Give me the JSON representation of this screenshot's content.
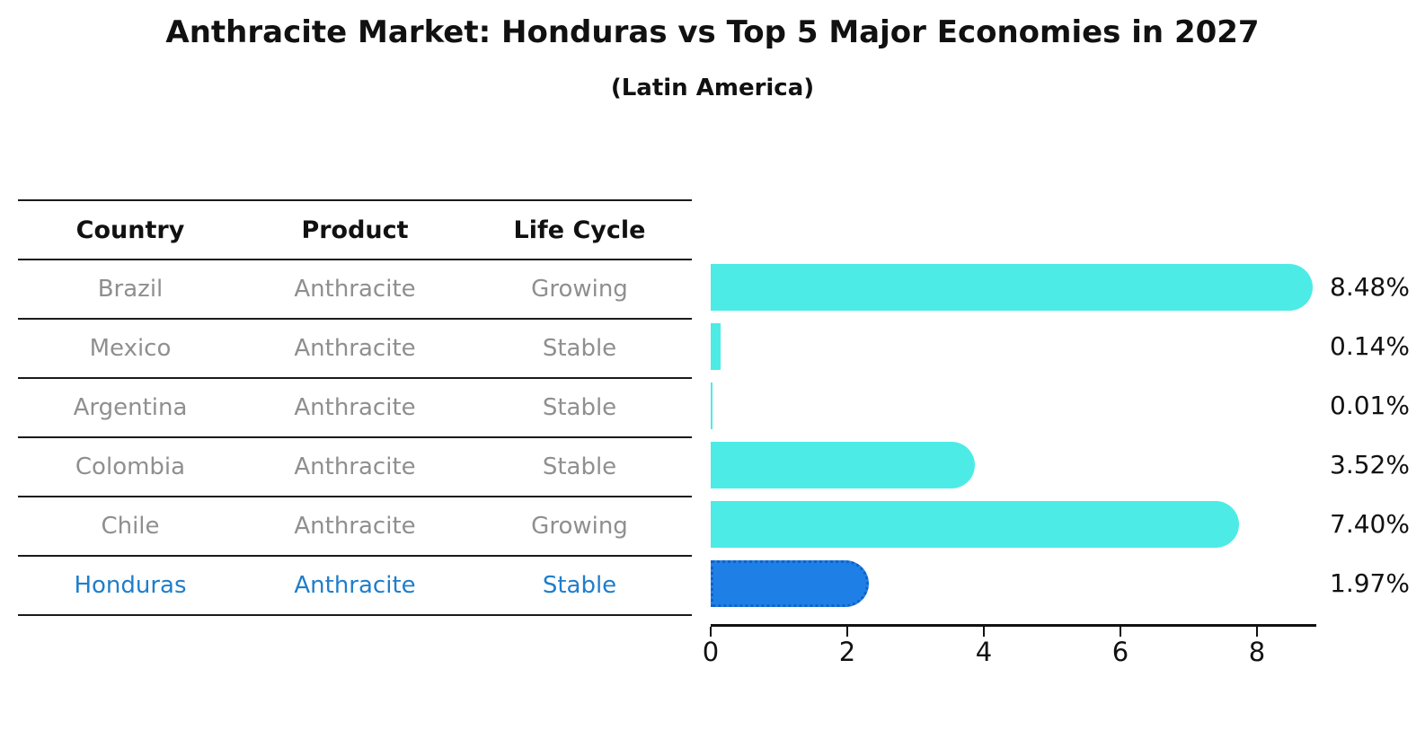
{
  "header": {
    "title": "Anthracite Market: Honduras vs Top 5 Major Economies in 2027",
    "subtitle": "(Latin America)"
  },
  "table": {
    "headers": [
      "Country",
      "Product",
      "Life Cycle"
    ],
    "rows": [
      {
        "country": "Brazil",
        "product": "Anthracite",
        "life_cycle": "Growing",
        "highlight": false
      },
      {
        "country": "Mexico",
        "product": "Anthracite",
        "life_cycle": "Stable",
        "highlight": false
      },
      {
        "country": "Argentina",
        "product": "Anthracite",
        "life_cycle": "Stable",
        "highlight": false
      },
      {
        "country": "Colombia",
        "product": "Anthracite",
        "life_cycle": "Stable",
        "highlight": false
      },
      {
        "country": "Chile",
        "product": "Anthracite",
        "life_cycle": "Growing",
        "highlight": false
      },
      {
        "country": "Honduras",
        "product": "Anthracite",
        "life_cycle": "Stable",
        "highlight": true
      }
    ]
  },
  "chart_data": {
    "type": "bar",
    "orientation": "horizontal",
    "title": "Anthracite Market: Honduras vs Top 5 Major Economies in 2027",
    "subtitle": "(Latin America)",
    "categories": [
      "Brazil",
      "Mexico",
      "Argentina",
      "Colombia",
      "Chile",
      "Honduras"
    ],
    "values": [
      8.48,
      0.14,
      0.01,
      3.52,
      7.4,
      1.97
    ],
    "value_labels": [
      "8.48%",
      "0.14%",
      "0.01%",
      "3.52%",
      "7.40%",
      "1.97%"
    ],
    "xticks": [
      0,
      2,
      4,
      6,
      8
    ],
    "xlim": [
      0,
      8.9
    ],
    "grid": false,
    "legend": false,
    "highlight_index": 5,
    "colors": {
      "bar": "#4DEBE6",
      "highlight_fill": "#1E80E6",
      "highlight_border": "#1261C9",
      "highlight_text": "#1F7ECB",
      "text": "#111111",
      "muted_text": "#8F8F8F"
    }
  }
}
